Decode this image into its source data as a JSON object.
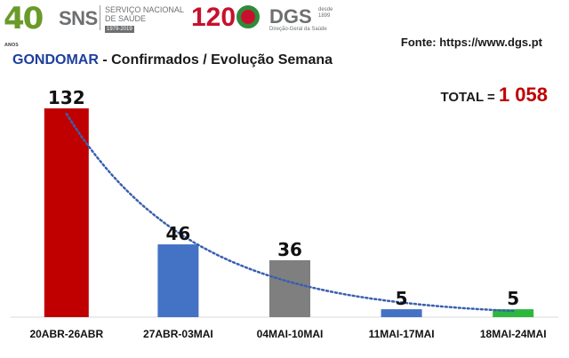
{
  "header": {
    "logo_40": "40",
    "logo_40_sub": "ANOS",
    "sns_acronym": "SNS",
    "sns_line1": "SERVIÇO NACIONAL",
    "sns_line2": "DE SAÚDE",
    "sns_years": "1979-2019",
    "logo_120": "120",
    "dgs_acronym": "DGS",
    "dgs_desde": "desde",
    "dgs_year": "1899",
    "dgs_name": "Direção-Geral da Saúde"
  },
  "source": "Fonte: https://www.dgs.pt",
  "title_place": "GONDOMAR",
  "title_rest": " - Confirmados / Evolução Semana",
  "total_label": "TOTAL = ",
  "total_value": "1 058",
  "colors": {
    "red": "#c00000",
    "blue": "#4472c4",
    "gray": "#7f7f7f",
    "green": "#2db83d",
    "trend": "#3a5fb0"
  },
  "chart_data": {
    "type": "bar",
    "categories": [
      "20ABR-26ABR",
      "27ABR-03MAI",
      "04MAI-10MAI",
      "11MAI-17MAI",
      "18MAI-24MAI"
    ],
    "values": [
      132,
      46,
      36,
      5,
      5
    ],
    "data_labels": [
      "132",
      "46",
      "36",
      "5",
      "5"
    ],
    "bar_colors": [
      "#c00000",
      "#4472c4",
      "#7f7f7f",
      "#4472c4",
      "#2db83d"
    ],
    "trendline": "exponential, dotted",
    "ylim": [
      0,
      132
    ],
    "grid": false,
    "legend": "none"
  }
}
